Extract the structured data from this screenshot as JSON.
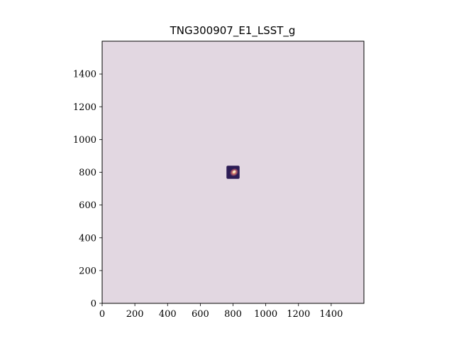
{
  "chart_data": {
    "type": "heatmap",
    "title": "TNG300907_E1_LSST_g",
    "xlabel": "",
    "ylabel": "",
    "xlim": [
      0,
      1600
    ],
    "ylim": [
      0,
      1600
    ],
    "x_ticks": [
      0,
      200,
      400,
      600,
      800,
      1000,
      1200,
      1400
    ],
    "y_ticks": [
      0,
      200,
      400,
      600,
      800,
      1000,
      1200,
      1400
    ],
    "background_color": "#e2d7e1",
    "grid": false,
    "colormap": "twilight_shifted",
    "source": {
      "center": [
        800,
        800
      ],
      "extent": [
        760,
        840,
        760,
        840
      ],
      "core_color": "#f6e7c8",
      "mid_color": "#b25a6b",
      "edge_color": "#2c1c55"
    }
  }
}
